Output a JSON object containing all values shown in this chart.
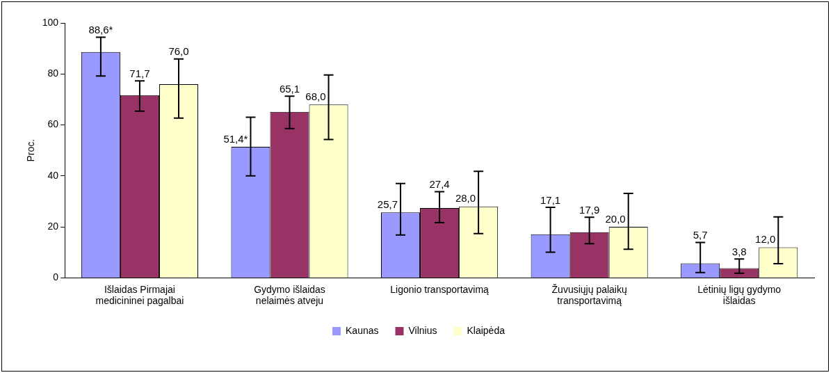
{
  "chart_data": {
    "type": "bar",
    "ylabel": "Proc.",
    "categories": [
      "Išlaidas Pirmajai medicininei pagalbai",
      "Gydymo išlaidas nelaimės atveju",
      "Ligonio transportavimą",
      "Žuvusiųjų palaikų transportavimą",
      "Lėtinių ligų gydymo išlaidas"
    ],
    "series": [
      {
        "name": "Kaunas",
        "color": "#9999ff",
        "values": [
          88.6,
          51.4,
          25.7,
          17.1,
          5.7
        ],
        "value_labels": [
          "88,6*",
          "51,4*",
          "25,7",
          "17,1",
          "5,7"
        ],
        "errors": [
          [
            79.2,
            94.4
          ],
          [
            40.0,
            63.0
          ],
          [
            16.8,
            37.0
          ],
          [
            10.1,
            27.7
          ],
          [
            2.1,
            13.9
          ]
        ]
      },
      {
        "name": "Vilnius",
        "color": "#993366",
        "values": [
          71.7,
          65.1,
          27.4,
          17.9,
          3.8
        ],
        "value_labels": [
          "71,7",
          "65,1",
          "27,4",
          "17,9",
          "3,8"
        ],
        "errors": [
          [
            65.4,
            77.3
          ],
          [
            58.6,
            71.3
          ],
          [
            21.7,
            33.8
          ],
          [
            13.4,
            23.8
          ],
          [
            1.8,
            7.4
          ]
        ]
      },
      {
        "name": "Klaipėda",
        "color": "#ffffcc",
        "values": [
          76.0,
          68.0,
          28.0,
          20.0,
          12.0
        ],
        "value_labels": [
          "76,0",
          "68,0",
          "28,0",
          "20,0",
          "12,0"
        ],
        "errors": [
          [
            62.7,
            85.9
          ],
          [
            54.3,
            79.6
          ],
          [
            17.4,
            41.8
          ],
          [
            11.2,
            33.1
          ],
          [
            5.6,
            23.9
          ]
        ]
      }
    ],
    "ylim": [
      0,
      100
    ],
    "yticks": [
      0,
      20,
      40,
      60,
      80,
      100
    ],
    "grid": false,
    "legend": "bottom"
  }
}
